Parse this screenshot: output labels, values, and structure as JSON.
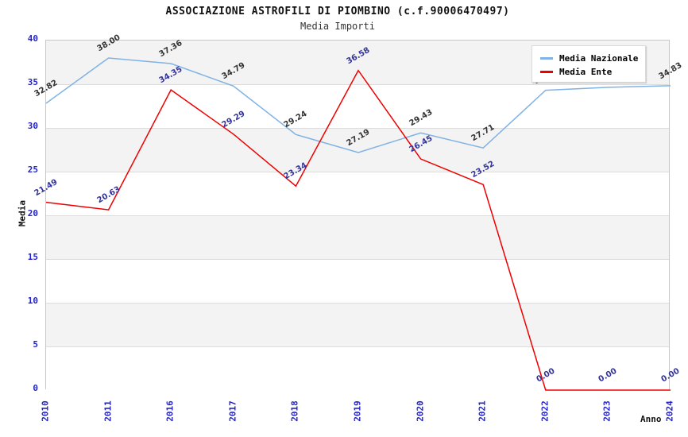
{
  "page": {
    "background": "#ffffff"
  },
  "chart_data": {
    "type": "line",
    "title": "ASSOCIAZIONE ASTROFILI DI PIOMBINO (c.f.90006470497)",
    "subtitle": "Media Importi",
    "xlabel": "Anno",
    "ylabel": "Media",
    "categories": [
      "2010",
      "2011",
      "2016",
      "2017",
      "2018",
      "2019",
      "2020",
      "2021",
      "2022",
      "2023",
      "2024"
    ],
    "series": [
      {
        "name": "Media Nazionale",
        "color": "#7FB2E5",
        "label_color": "#333333",
        "values": [
          32.82,
          38.0,
          37.36,
          34.79,
          29.24,
          27.19,
          29.43,
          27.71,
          34.31,
          34.65,
          34.83
        ]
      },
      {
        "name": "Media Ente",
        "color": "#EE0000",
        "label_color": "#333399",
        "values": [
          21.49,
          20.63,
          34.35,
          29.29,
          23.34,
          36.58,
          26.45,
          23.52,
          0.0,
          0.0,
          0.0
        ]
      }
    ],
    "ylim": [
      0,
      40
    ],
    "ytick_step": 5,
    "grid": true,
    "band_colors": [
      "#f3f3f3",
      "#ffffff"
    ],
    "gridline_color": "#dcdcdc",
    "axis_tick_color": "#2222CC",
    "legend_position": "top-right",
    "label_format_decimals": 2
  }
}
